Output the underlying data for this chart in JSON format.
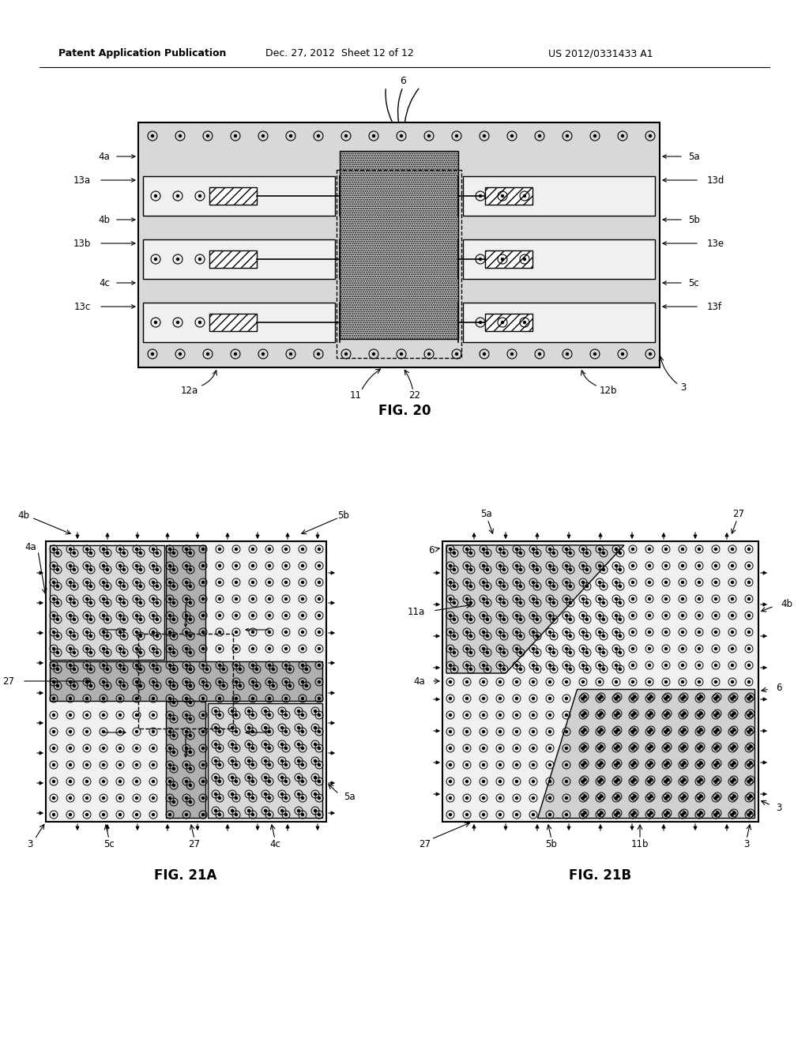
{
  "header_text": "Patent Application Publication",
  "header_date": "Dec. 27, 2012  Sheet 12 of 12",
  "header_patent": "US 2012/0331433 A1",
  "fig20_title": "FIG. 20",
  "fig21a_title": "FIG. 21A",
  "fig21b_title": "FIG. 21B",
  "bg_color": "#ffffff"
}
